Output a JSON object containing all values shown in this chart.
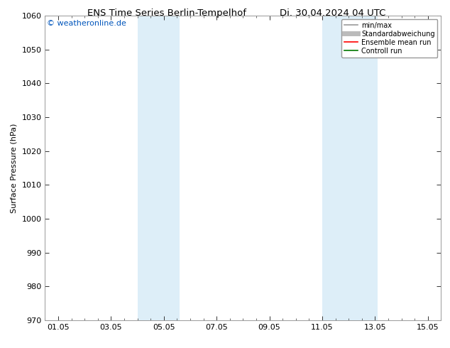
{
  "title": "ENS Time Series Berlin-Tempelhof",
  "title_right": "Di. 30.04.2024 04 UTC",
  "ylabel": "Surface Pressure (hPa)",
  "ylim": [
    970,
    1060
  ],
  "yticks": [
    970,
    980,
    990,
    1000,
    1010,
    1020,
    1030,
    1040,
    1050,
    1060
  ],
  "xtick_labels": [
    "01.05",
    "03.05",
    "05.05",
    "07.05",
    "09.05",
    "11.05",
    "13.05",
    "15.05"
  ],
  "xtick_positions": [
    1,
    3,
    5,
    7,
    9,
    11,
    13,
    15
  ],
  "xlim": [
    0.5,
    15.5
  ],
  "watermark": "© weatheronline.de",
  "watermark_color": "#0055bb",
  "bg_color": "#ffffff",
  "plot_bg_color": "#ffffff",
  "shaded_regions": [
    {
      "start": 4.0,
      "end": 5.6
    },
    {
      "start": 11.0,
      "end": 12.0
    },
    {
      "start": 12.0,
      "end": 13.1
    }
  ],
  "shade_color": "#ddeef8",
  "legend_entries": [
    {
      "label": "min/max",
      "color": "#999999",
      "lw": 1.2,
      "style": "-"
    },
    {
      "label": "Standardabweichung",
      "color": "#bbbbbb",
      "lw": 5,
      "style": "-"
    },
    {
      "label": "Ensemble mean run",
      "color": "#ff0000",
      "lw": 1.2,
      "style": "-"
    },
    {
      "label": "Controll run",
      "color": "#007700",
      "lw": 1.2,
      "style": "-"
    }
  ],
  "grid_color": "#dddddd",
  "border_color": "#999999",
  "tick_color": "#333333",
  "font_size": 8,
  "title_font_size": 9.5
}
